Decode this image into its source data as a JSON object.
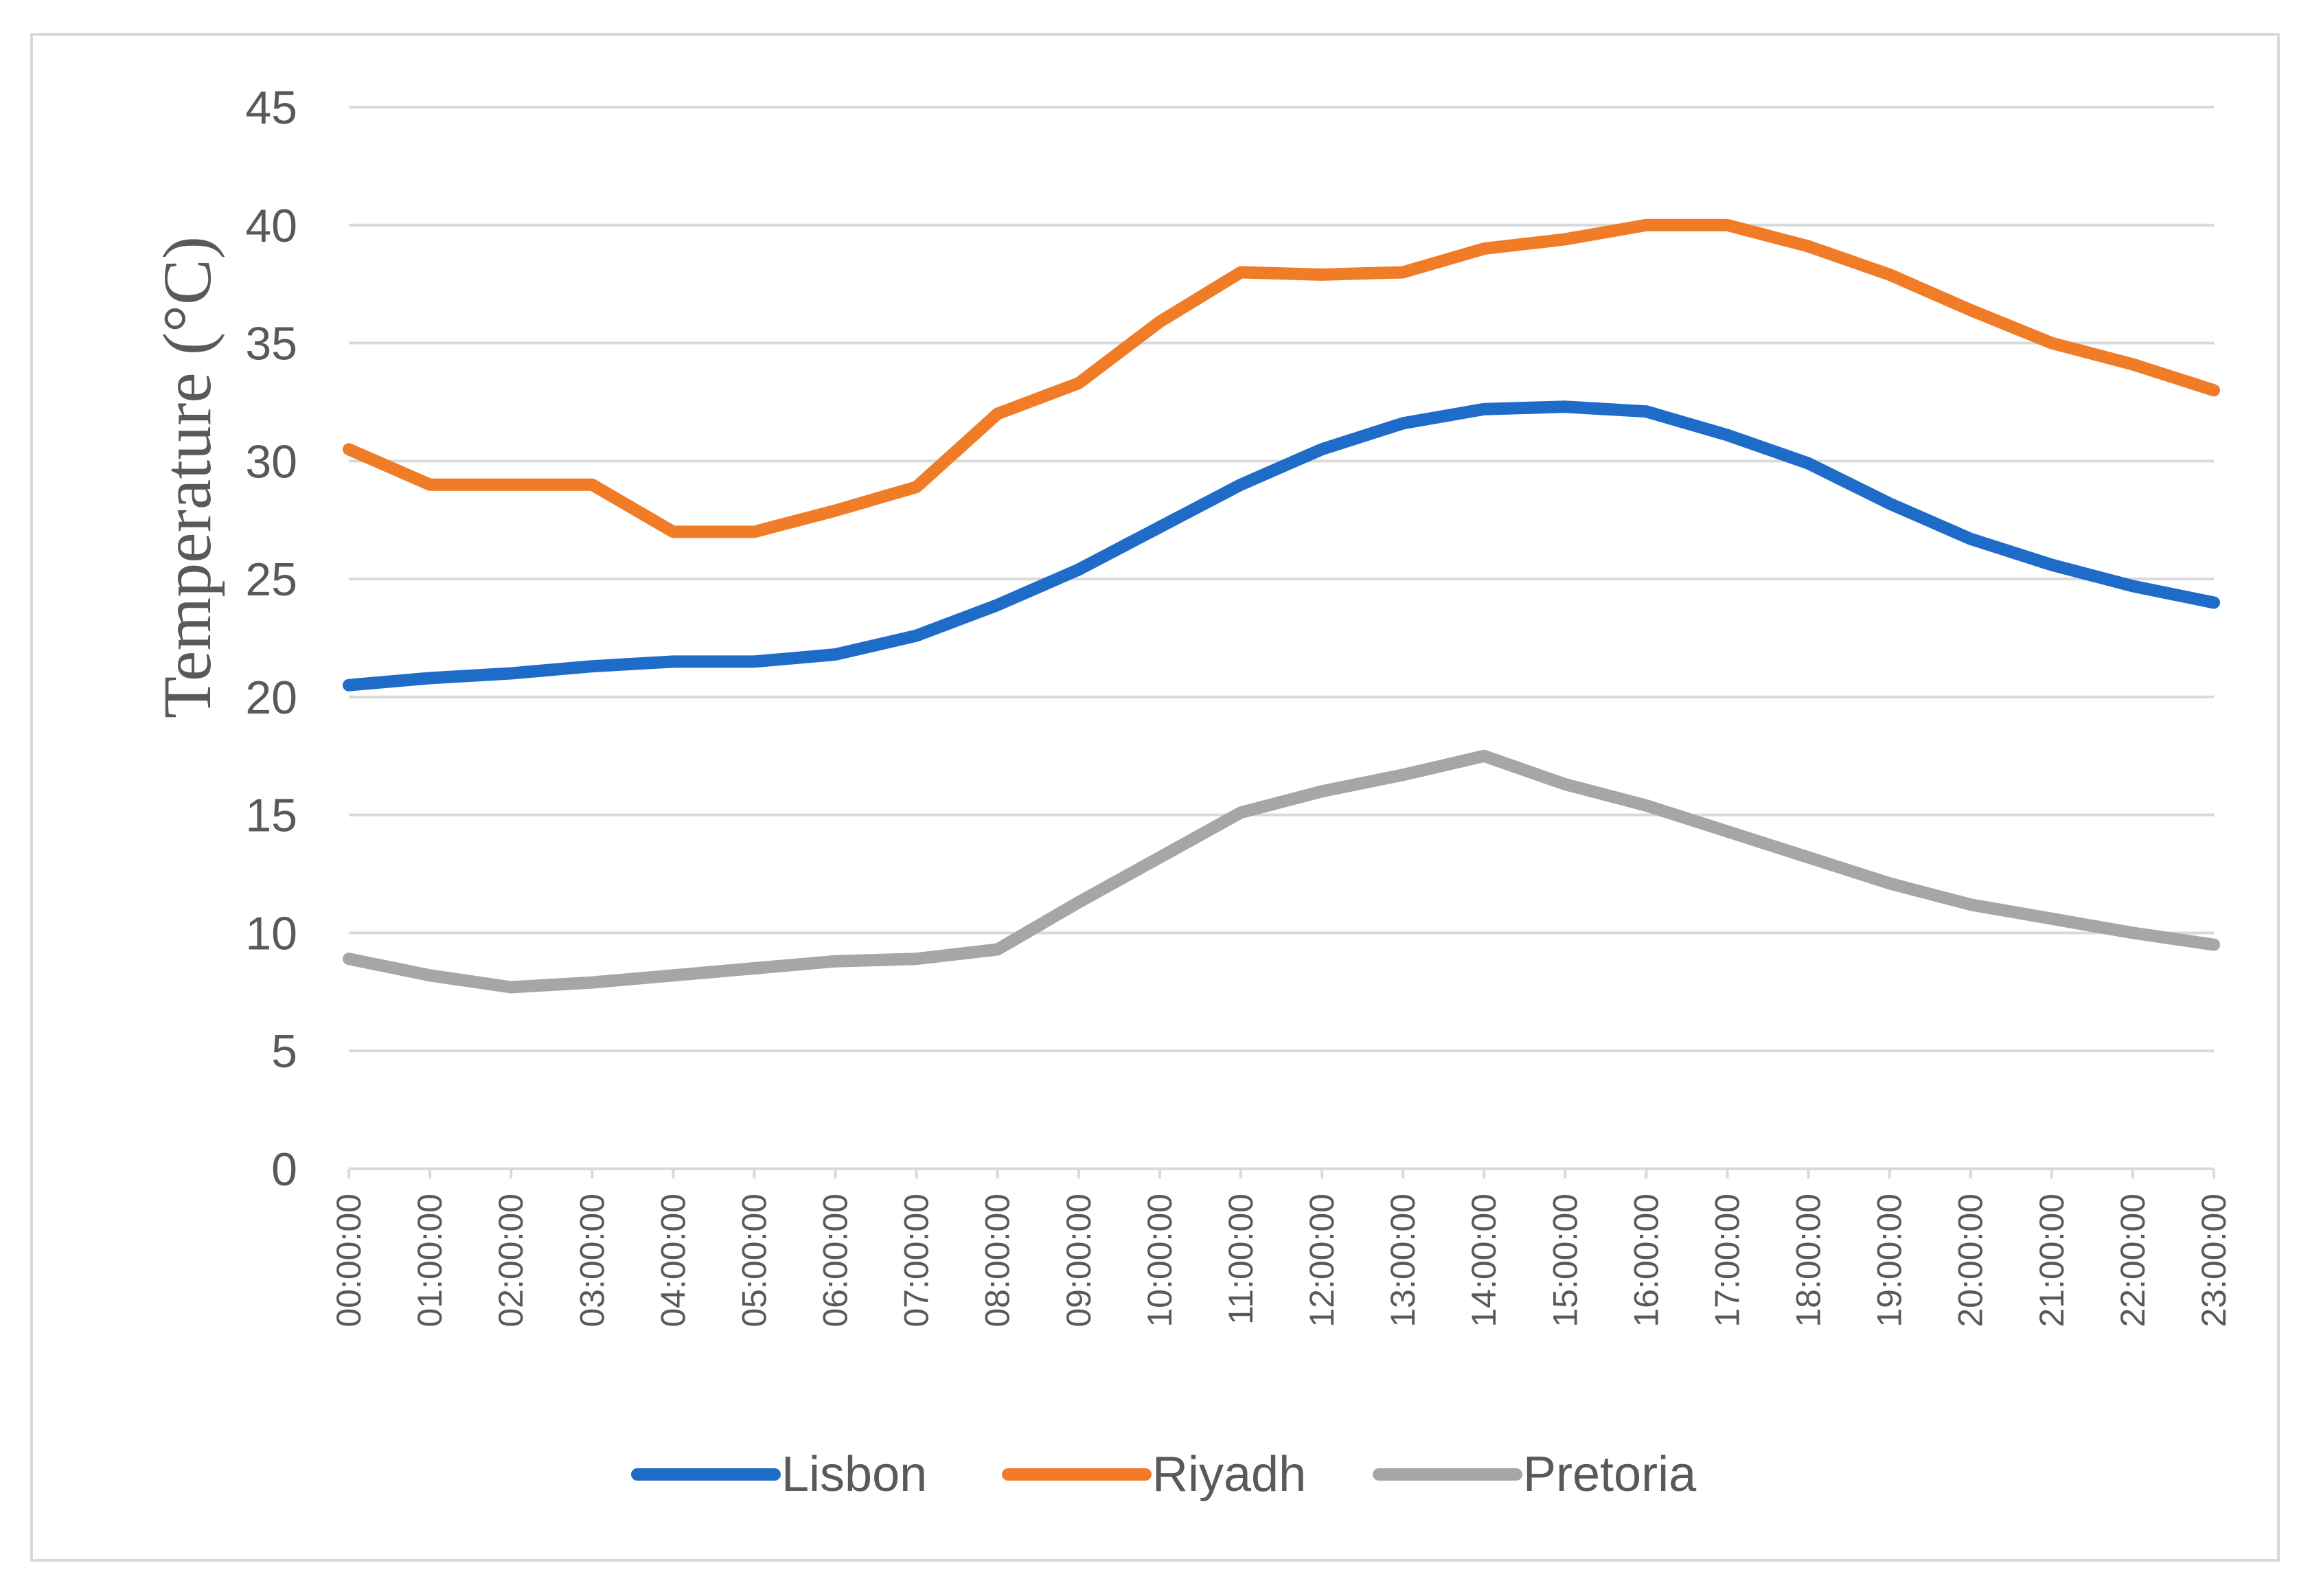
{
  "chart_data": {
    "type": "line",
    "title": "",
    "xlabel": "",
    "ylabel": "Temperature (°C)",
    "ylim": [
      0,
      45
    ],
    "yticks": [
      0,
      5,
      10,
      15,
      20,
      25,
      30,
      35,
      40,
      45
    ],
    "grid": true,
    "legend_position": "bottom",
    "categories": [
      "00:00:00",
      "01:00:00",
      "02:00:00",
      "03:00:00",
      "04:00:00",
      "05:00:00",
      "06:00:00",
      "07:00:00",
      "08:00:00",
      "09:00:00",
      "10:00:00",
      "11:00:00",
      "12:00:00",
      "13:00:00",
      "14:00:00",
      "15:00:00",
      "16:00:00",
      "17:00:00",
      "18:00:00",
      "19:00:00",
      "20:00:00",
      "21:00:00",
      "22:00:00",
      "23:00:00"
    ],
    "series": [
      {
        "name": "Lisbon",
        "color": "#1f6cc8",
        "values": [
          20.5,
          20.8,
          21.0,
          21.3,
          21.5,
          21.5,
          21.8,
          22.6,
          23.9,
          25.4,
          27.2,
          29.0,
          30.5,
          31.6,
          32.2,
          32.3,
          32.1,
          31.1,
          29.9,
          28.2,
          26.7,
          25.6,
          24.7,
          24.0
        ]
      },
      {
        "name": "Riyadh",
        "color": "#f07c28",
        "values": [
          30.5,
          29.0,
          29.0,
          29.0,
          27.0,
          27.0,
          27.9,
          28.9,
          32.0,
          33.3,
          35.9,
          38.0,
          37.9,
          38.0,
          39.0,
          39.4,
          40.0,
          40.0,
          39.1,
          37.9,
          36.4,
          35.0,
          34.1,
          33.0
        ]
      },
      {
        "name": "Pretoria",
        "color": "#a6a6a6",
        "values": [
          8.9,
          8.2,
          7.7,
          7.9,
          8.2,
          8.5,
          8.8,
          8.9,
          9.3,
          11.3,
          13.2,
          15.1,
          16.0,
          16.7,
          17.5,
          16.3,
          15.4,
          14.3,
          13.2,
          12.1,
          11.2,
          10.6,
          10.0,
          9.5
        ]
      }
    ]
  }
}
